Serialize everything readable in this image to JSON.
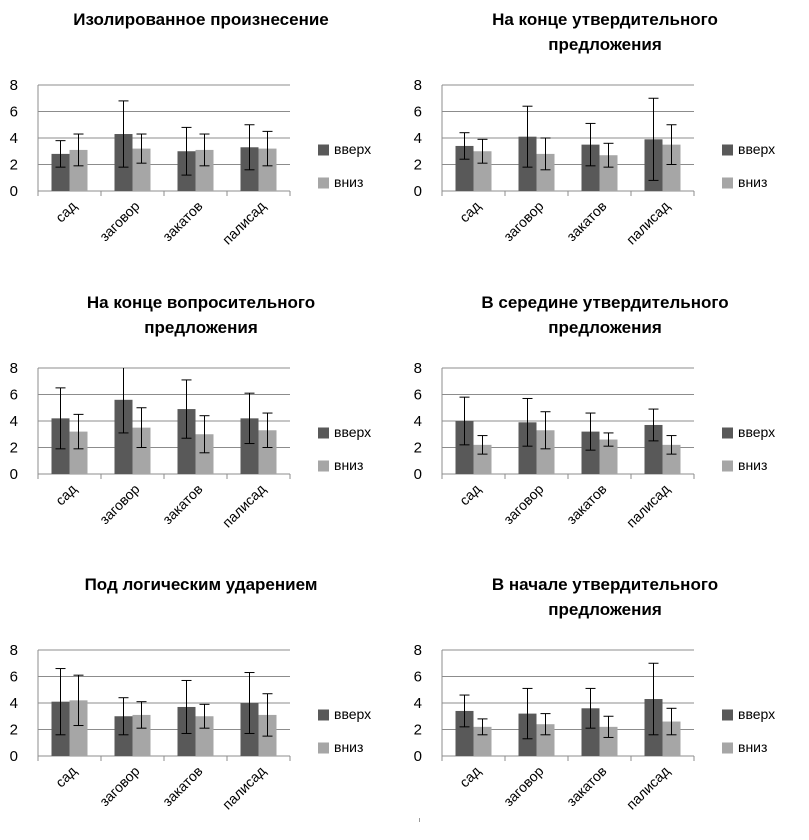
{
  "colors": {
    "up": "#595959",
    "down": "#a6a6a6",
    "grid": "#8c8c8c",
    "axis": "#8c8c8c",
    "error": "#000000"
  },
  "chart_data": [
    {
      "type": "bar",
      "title_lines": [
        "Изолированное произнесение"
      ],
      "categories": [
        "сад",
        "заговор",
        "закатов",
        "палисад"
      ],
      "ylim": [
        0,
        8
      ],
      "yticks": [
        "0",
        "2",
        "4",
        "6",
        "8"
      ],
      "grid": true,
      "legend": "right",
      "series": [
        {
          "name": "вверх",
          "values": [
            2.8,
            4.3,
            3.0,
            3.3
          ],
          "errors": [
            1.0,
            2.5,
            1.8,
            1.7
          ]
        },
        {
          "name": "вниз",
          "values": [
            3.1,
            3.2,
            3.1,
            3.2
          ],
          "errors": [
            1.2,
            1.1,
            1.2,
            1.3
          ]
        }
      ]
    },
    {
      "type": "bar",
      "title_lines": [
        "На конце утвердительного",
        "предложения"
      ],
      "categories": [
        "сад",
        "заговор",
        "закатов",
        "палисад"
      ],
      "ylim": [
        0,
        8
      ],
      "yticks": [
        "0",
        "2",
        "4",
        "6",
        "8"
      ],
      "grid": true,
      "legend": "right",
      "series": [
        {
          "name": "вверх",
          "values": [
            3.4,
            4.1,
            3.5,
            3.9
          ],
          "errors": [
            1.0,
            2.3,
            1.6,
            3.1
          ]
        },
        {
          "name": "вниз",
          "values": [
            3.0,
            2.8,
            2.7,
            3.5
          ],
          "errors": [
            0.9,
            1.2,
            0.9,
            1.5
          ]
        }
      ]
    },
    {
      "type": "bar",
      "title_lines": [
        "На конце вопросительного",
        "предложения"
      ],
      "categories": [
        "сад",
        "заговор",
        "закатов",
        "палисад"
      ],
      "ylim": [
        0,
        8
      ],
      "yticks": [
        "0",
        "2",
        "4",
        "6",
        "8"
      ],
      "grid": true,
      "legend": "right",
      "series": [
        {
          "name": "вверх",
          "values": [
            4.2,
            5.6,
            4.9,
            4.2
          ],
          "errors": [
            2.3,
            2.5,
            2.2,
            1.9
          ]
        },
        {
          "name": "вниз",
          "values": [
            3.2,
            3.5,
            3.0,
            3.3
          ],
          "errors": [
            1.3,
            1.5,
            1.4,
            1.3
          ]
        }
      ]
    },
    {
      "type": "bar",
      "title_lines": [
        "В середине утвердительного",
        "предложения"
      ],
      "categories": [
        "сад",
        "заговор",
        "закатов",
        "палисад"
      ],
      "ylim": [
        0,
        8
      ],
      "yticks": [
        "0",
        "2",
        "4",
        "6",
        "8"
      ],
      "grid": true,
      "legend": "right",
      "series": [
        {
          "name": "вверх",
          "values": [
            4.0,
            3.9,
            3.2,
            3.7
          ],
          "errors": [
            1.8,
            1.8,
            1.4,
            1.2
          ]
        },
        {
          "name": "вниз",
          "values": [
            2.2,
            3.3,
            2.6,
            2.2
          ],
          "errors": [
            0.7,
            1.4,
            0.5,
            0.7
          ]
        }
      ]
    },
    {
      "type": "bar",
      "title_lines": [
        "Под логическим ударением"
      ],
      "categories": [
        "сад",
        "заговор",
        "закатов",
        "палисад"
      ],
      "ylim": [
        0,
        8
      ],
      "yticks": [
        "0",
        "2",
        "4",
        "6",
        "8"
      ],
      "grid": true,
      "legend": "right",
      "series": [
        {
          "name": "вверх",
          "values": [
            4.1,
            3.0,
            3.7,
            4.0
          ],
          "errors": [
            2.5,
            1.4,
            2.0,
            2.3
          ]
        },
        {
          "name": "вниз",
          "values": [
            4.2,
            3.1,
            3.0,
            3.1
          ],
          "errors": [
            1.9,
            1.0,
            0.9,
            1.6
          ]
        }
      ]
    },
    {
      "type": "bar",
      "title_lines": [
        "В начале утвердительного",
        "предложения"
      ],
      "categories": [
        "сад",
        "заговор",
        "закатов",
        "палисад"
      ],
      "ylim": [
        0,
        8
      ],
      "yticks": [
        "0",
        "2",
        "4",
        "6",
        "8"
      ],
      "grid": true,
      "legend": "right",
      "series": [
        {
          "name": "вверх",
          "values": [
            3.4,
            3.2,
            3.6,
            4.3
          ],
          "errors": [
            1.2,
            1.9,
            1.5,
            2.7
          ]
        },
        {
          "name": "вниз",
          "values": [
            2.2,
            2.4,
            2.2,
            2.6
          ],
          "errors": [
            0.6,
            0.8,
            0.8,
            1.0
          ]
        }
      ]
    }
  ]
}
